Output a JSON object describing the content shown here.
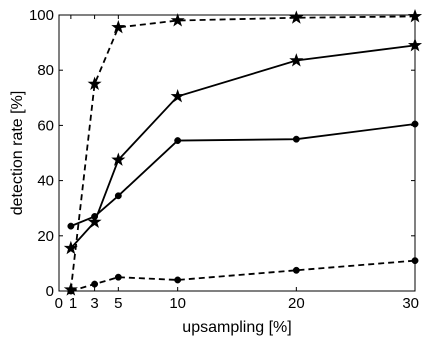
{
  "chart_data": {
    "type": "line",
    "xlabel": "upsampling [%]",
    "ylabel": "detection rate [%]",
    "xlim": [
      0,
      30
    ],
    "ylim": [
      0,
      100
    ],
    "xticks": [
      0,
      1,
      3,
      5,
      10,
      20,
      30
    ],
    "xtick_labels": [
      "0",
      "1",
      "3",
      "5",
      "10",
      "20",
      "30"
    ],
    "yticks": [
      0,
      20,
      40,
      60,
      80,
      100
    ],
    "ytick_labels": [
      "0",
      "20",
      "40",
      "60",
      "80",
      "100"
    ],
    "grid": false,
    "series": [
      {
        "style": "dashed",
        "marker": "star",
        "color": "#000000",
        "x": [
          1,
          3,
          5,
          10,
          20,
          30
        ],
        "y": [
          0.5,
          75,
          95.5,
          98,
          99,
          99.5
        ]
      },
      {
        "style": "solid",
        "marker": "star",
        "color": "#000000",
        "x": [
          1,
          3,
          5,
          10,
          20,
          30
        ],
        "y": [
          15.5,
          25,
          47.5,
          70.5,
          83.5,
          89
        ]
      },
      {
        "style": "solid",
        "marker": "circle",
        "color": "#000000",
        "x": [
          1,
          3,
          5,
          10,
          20,
          30
        ],
        "y": [
          23.5,
          27,
          34.5,
          54.5,
          55,
          60.5
        ]
      },
      {
        "style": "dashed",
        "marker": "circle",
        "color": "#000000",
        "x": [
          1,
          3,
          5,
          10,
          20,
          30
        ],
        "y": [
          0,
          2.5,
          5,
          4,
          7.5,
          11
        ]
      }
    ]
  }
}
